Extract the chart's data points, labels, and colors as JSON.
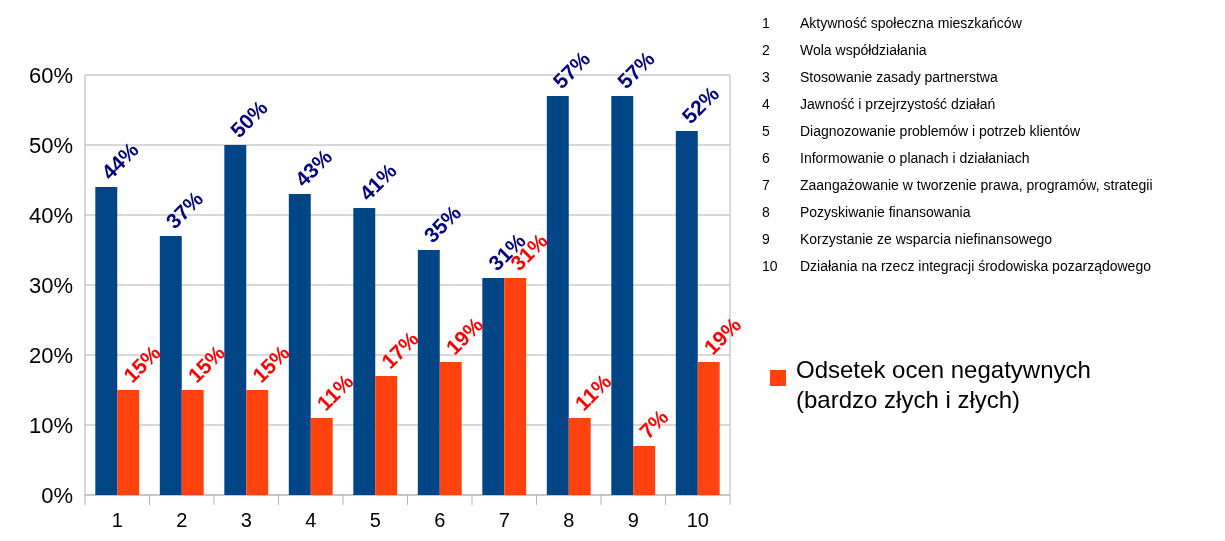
{
  "chart_data": {
    "type": "bar",
    "categories": [
      "1",
      "2",
      "3",
      "4",
      "5",
      "6",
      "7",
      "8",
      "9",
      "10"
    ],
    "series": [
      {
        "color": "#004586",
        "values": [
          44,
          37,
          50,
          43,
          41,
          35,
          31,
          57,
          57,
          52
        ],
        "value_labels": [
          "44%",
          "37%",
          "50%",
          "43%",
          "41%",
          "35%",
          "31%",
          "57%",
          "57%",
          "52%"
        ]
      },
      {
        "name": "Odsetek ocen negatywnych (bardzo złych i złych)",
        "color": "#ff420e",
        "values": [
          15,
          15,
          15,
          11,
          17,
          19,
          31,
          11,
          7,
          19
        ],
        "value_labels": [
          "15%",
          "15%",
          "15%",
          "11%",
          "17%",
          "19%",
          "31%",
          "11%",
          "7%",
          "19%"
        ]
      }
    ],
    "ylim": [
      0,
      60
    ],
    "yticks": [
      {
        "value": 0,
        "label": "0%"
      },
      {
        "value": 10,
        "label": "10%"
      },
      {
        "value": 20,
        "label": "20%"
      },
      {
        "value": 30,
        "label": "30%"
      },
      {
        "value": 40,
        "label": "40%"
      },
      {
        "value": 50,
        "label": "50%"
      },
      {
        "value": 60,
        "label": "60%"
      }
    ],
    "grid": "y",
    "legend": "right",
    "annotations": [
      "1 Aktywność społeczna mieszkańców",
      "2 Wola współdziałania",
      "3 Stosowanie zasady partnerstwa",
      "4 Jawność i przejrzystość działań",
      "5 Diagnozowanie problemów i potrzeb klientów",
      "6 Informowanie o planach i działaniach",
      "7 Zaangażowanie w tworzenie prawa, programów, strategii",
      "8 Pozyskiwanie finansowania",
      "9 Korzystanie ze wsparcia niefinansowego",
      "10 Działania na rzecz integracji środowiska pozarządowego"
    ]
  }
}
